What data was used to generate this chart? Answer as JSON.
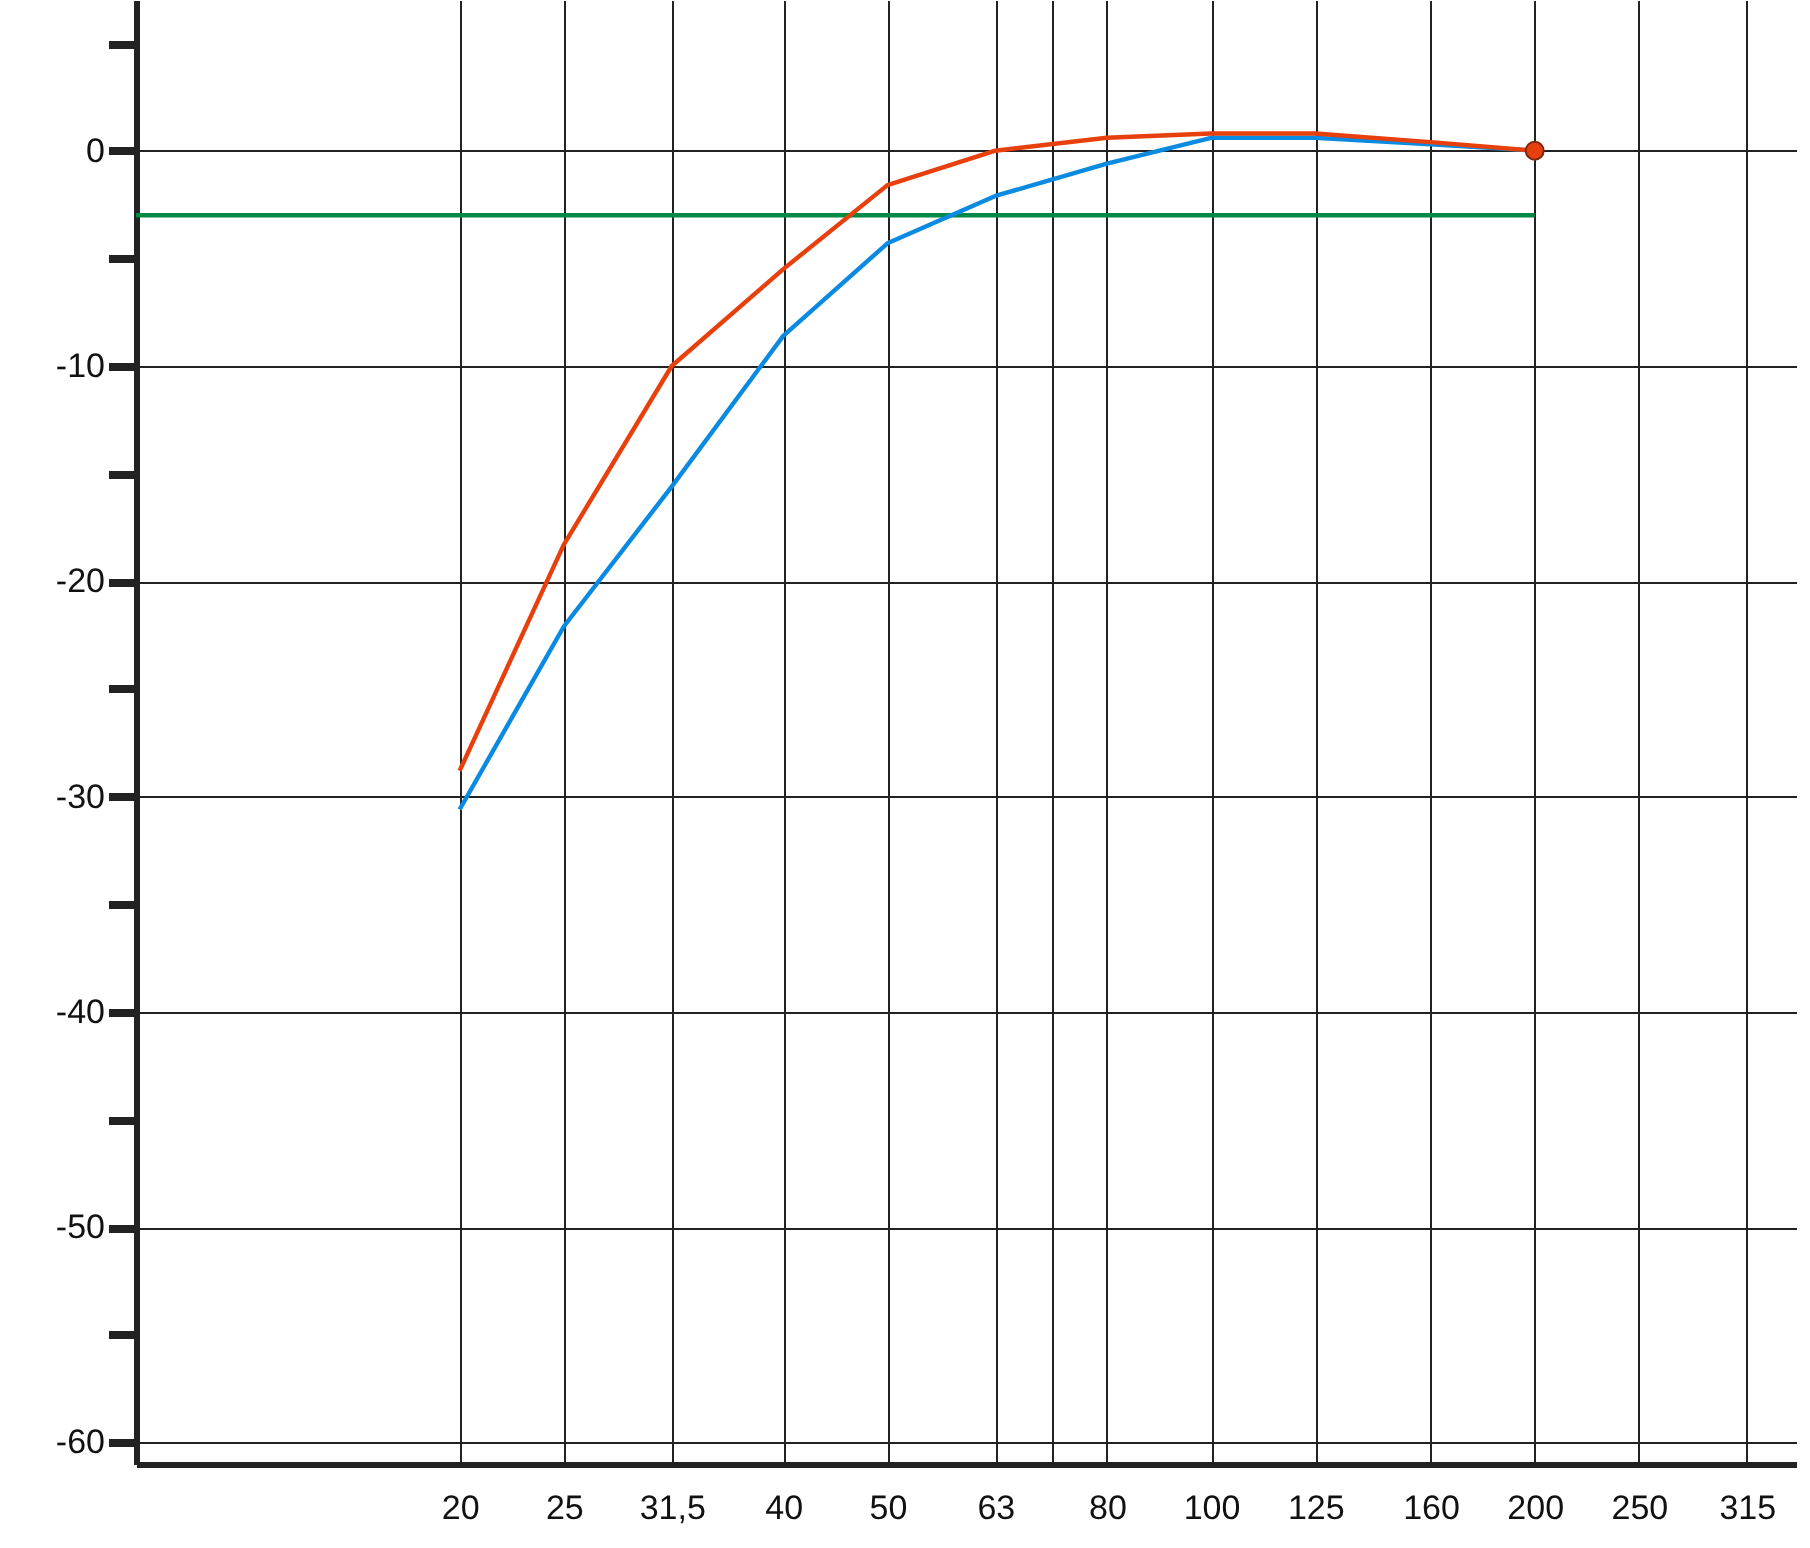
{
  "chart_data": {
    "type": "line",
    "log": "x",
    "grid": true,
    "xlim": [
      10,
      350
    ],
    "ylim": [
      -61,
      7
    ],
    "xticks": [
      20,
      25,
      {
        "value": 31.5,
        "label": "31,5"
      },
      40,
      50,
      63,
      {
        "value": 71,
        "label": null
      },
      80,
      100,
      125,
      160,
      200,
      250,
      315
    ],
    "yticks": [
      -60,
      {
        "value": -55,
        "label": null
      },
      -50,
      {
        "value": -45,
        "label": null
      },
      -40,
      {
        "value": -35,
        "label": null
      },
      -30,
      {
        "value": -25,
        "label": null
      },
      -20,
      {
        "value": -15,
        "label": null
      },
      -10,
      {
        "value": -5,
        "label": null
      },
      0,
      {
        "value": 5,
        "label": null
      }
    ],
    "series": [
      {
        "color": "#008a45",
        "x": [
          10,
          200
        ],
        "values": [
          -3,
          -3
        ]
      },
      {
        "color": "#0a8ae0",
        "x": [
          20,
          25,
          31.5,
          40,
          50,
          63,
          80,
          100,
          125,
          160,
          200
        ],
        "values": [
          -30.6,
          -22.1,
          -15.6,
          -8.6,
          -4.3,
          -2.1,
          -0.6,
          0.6,
          0.6,
          0.3,
          0
        ]
      },
      {
        "color": "#e8400c",
        "x": [
          20,
          25,
          31.5,
          40,
          50,
          63,
          80,
          100,
          125,
          160,
          200
        ],
        "values": [
          -28.8,
          -18.3,
          -10,
          -5.5,
          -1.6,
          0,
          0.6,
          0.8,
          0.8,
          0.4,
          0
        ]
      },
      {
        "type": "scatter",
        "color": "#e8400c",
        "x": [
          200
        ],
        "values": [
          0
        ]
      }
    ]
  }
}
